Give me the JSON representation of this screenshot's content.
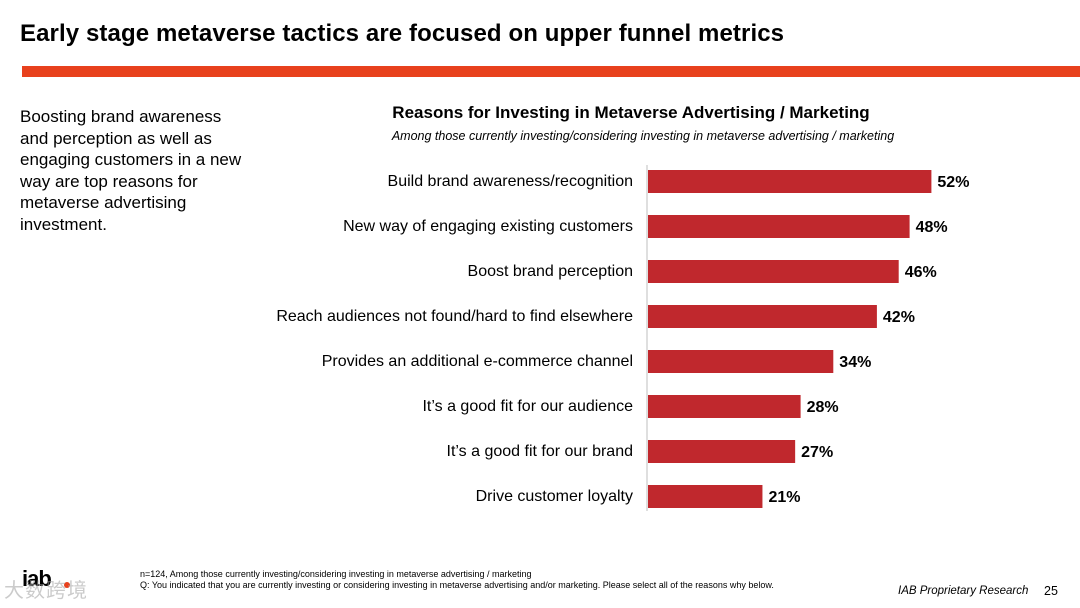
{
  "header": {
    "title": "Early stage metaverse tactics are focused on upper funnel metrics",
    "accent_color": "#e8411d"
  },
  "side_text": "Boosting brand awareness and perception as well as engaging customers in a new way are top reasons for metaverse advertising investment.",
  "chart_data": {
    "type": "bar",
    "orientation": "horizontal",
    "title": "Reasons for Investing in Metaverse Advertising / Marketing",
    "subtitle": "Among those currently investing/considering investing in metaverse advertising / marketing",
    "categories": [
      "Build brand awareness/recognition",
      "New way of engaging existing customers",
      "Boost brand perception",
      "Reach audiences not found/hard to find elsewhere",
      "Provides an additional e-commerce channel",
      "It’s a good fit for our audience",
      "It’s a good fit for our brand",
      "Drive customer loyalty"
    ],
    "values": [
      52,
      48,
      46,
      42,
      34,
      28,
      27,
      21
    ],
    "value_labels": [
      "52%",
      "48%",
      "46%",
      "42%",
      "34%",
      "28%",
      "27%",
      "21%"
    ],
    "unit": "%",
    "bar_color": "#c0282d",
    "xlim": [
      0,
      100
    ],
    "grid": false,
    "legend": "none"
  },
  "footer": {
    "note1": "n=124, Among those currently investing/considering investing in metaverse advertising / marketing",
    "note2": "Q: You indicated that you are currently investing or considering investing in metaverse advertising and/or marketing. Please select all of the reasons why below.",
    "proprietary": "IAB Proprietary Research",
    "page_number": "25",
    "logo_text": "iab",
    "logo_dot_color": "#e8411d",
    "watermark": "大数跨境"
  }
}
